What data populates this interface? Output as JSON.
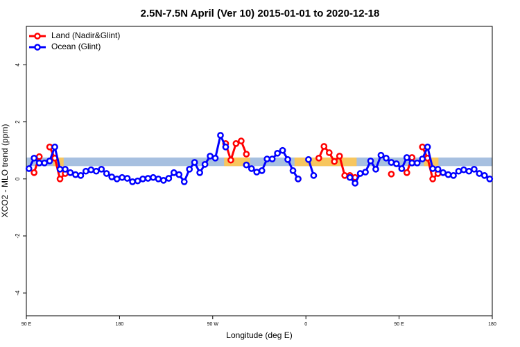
{
  "chart_data": {
    "type": "line",
    "title": "2.5N-7.5N April (Ver 10)   2015-01-01 to 2020-12-18",
    "x_label": "Longitude (deg E)",
    "y_label": "XCO2 - MLO trend (ppm)",
    "xlim": [
      90,
      540
    ],
    "ylim": [
      -4.8,
      5.35
    ],
    "xticks": [
      {
        "value": 90,
        "label": "90 E"
      },
      180,
      {
        "value": 270,
        "label": "90 W"
      },
      {
        "value": 360,
        "label": "0"
      },
      {
        "value": 450,
        "label": "90 E"
      },
      {
        "value": 540,
        "label": "180"
      }
    ],
    "yticks": [
      -4,
      -2,
      0,
      2,
      4
    ],
    "legend": "top-left",
    "band": {
      "y": [
        0.45,
        0.75
      ],
      "color": "#a7c0e0"
    },
    "highlights": {
      "color": "#f7c65e",
      "x": [
        [
          116,
          126
        ],
        [
          281,
          306
        ],
        [
          349,
          409
        ],
        [
          474,
          488
        ]
      ]
    },
    "x": [
      92.5,
      97.5,
      102.5,
      107.5,
      112.5,
      117.5,
      122.5,
      127.5,
      132.5,
      137.5,
      142.5,
      147.5,
      152.5,
      157.5,
      162.5,
      167.5,
      172.5,
      177.5,
      182.5,
      187.5,
      192.5,
      197.5,
      202.5,
      207.5,
      212.5,
      217.5,
      222.5,
      227.5,
      232.5,
      237.5,
      242.5,
      247.5,
      252.5,
      257.5,
      262.5,
      267.5,
      272.5,
      277.5,
      282.5,
      287.5,
      292.5,
      297.5,
      302.5,
      307.5,
      312.5,
      317.5,
      322.5,
      327.5,
      332.5,
      337.5,
      342.5,
      347.5,
      352.5,
      357.5,
      362.5,
      367.5,
      372.5,
      377.5,
      382.5,
      387.5,
      392.5,
      397.5,
      402.5,
      407.5,
      412.5,
      417.5,
      422.5,
      427.5,
      432.5,
      437.5,
      442.5,
      447.5,
      452.5,
      457.5,
      462.5,
      467.5,
      472.5,
      477.5,
      482.5,
      487.5,
      492.5,
      497.5,
      502.5,
      507.5,
      512.5,
      517.5,
      522.5,
      527.5,
      532.5,
      537.5
    ],
    "series": [
      {
        "name": "Land (Nadir&Glint)",
        "color": "#ff0000",
        "values": [
          null,
          0.22,
          0.78,
          null,
          1.12,
          0.73,
          0,
          0.19,
          null,
          null,
          null,
          null,
          null,
          null,
          null,
          null,
          null,
          null,
          null,
          null,
          null,
          null,
          null,
          null,
          null,
          null,
          null,
          null,
          null,
          null,
          null,
          null,
          null,
          null,
          null,
          null,
          null,
          null,
          1.24,
          0.66,
          1.24,
          1.33,
          0.87,
          null,
          null,
          null,
          null,
          null,
          null,
          null,
          null,
          null,
          0,
          null,
          null,
          null,
          0.73,
          1.14,
          0.92,
          0.61,
          0.8,
          0.12,
          0.12,
          0.05,
          null,
          null,
          null,
          null,
          null,
          null,
          0.17,
          null,
          null,
          0.22,
          0.75,
          null,
          1.12,
          0.73,
          0,
          0.19,
          null,
          null,
          null,
          null,
          null,
          null,
          null,
          null,
          null,
          null
        ]
      },
      {
        "name": "Ocean (Glint)",
        "color": "#0000ff",
        "values": [
          0.36,
          0.73,
          0.56,
          0.56,
          0.63,
          1.12,
          0.34,
          0.34,
          0.22,
          0.15,
          0.12,
          0.27,
          0.32,
          0.27,
          0.34,
          0.19,
          0.07,
          0,
          0.05,
          0.02,
          -0.1,
          -0.07,
          0,
          0.02,
          0.05,
          0,
          -0.05,
          0.02,
          0.22,
          0.15,
          -0.1,
          0.34,
          0.58,
          0.22,
          0.51,
          0.8,
          0.73,
          1.53,
          1.12,
          null,
          null,
          null,
          0.49,
          0.36,
          0.24,
          0.29,
          0.7,
          0.7,
          0.9,
          1.0,
          0.68,
          0.29,
          0,
          null,
          0.68,
          0.12,
          null,
          null,
          null,
          null,
          null,
          null,
          0.05,
          -0.15,
          0.19,
          0.24,
          0.63,
          0.34,
          0.83,
          0.73,
          0.58,
          0.53,
          0.36,
          0.75,
          0.56,
          0.56,
          0.7,
          1.12,
          0.36,
          0.34,
          0.22,
          0.15,
          0.12,
          0.27,
          0.32,
          0.27,
          0.34,
          0.19,
          0.12,
          0
        ]
      }
    ]
  }
}
